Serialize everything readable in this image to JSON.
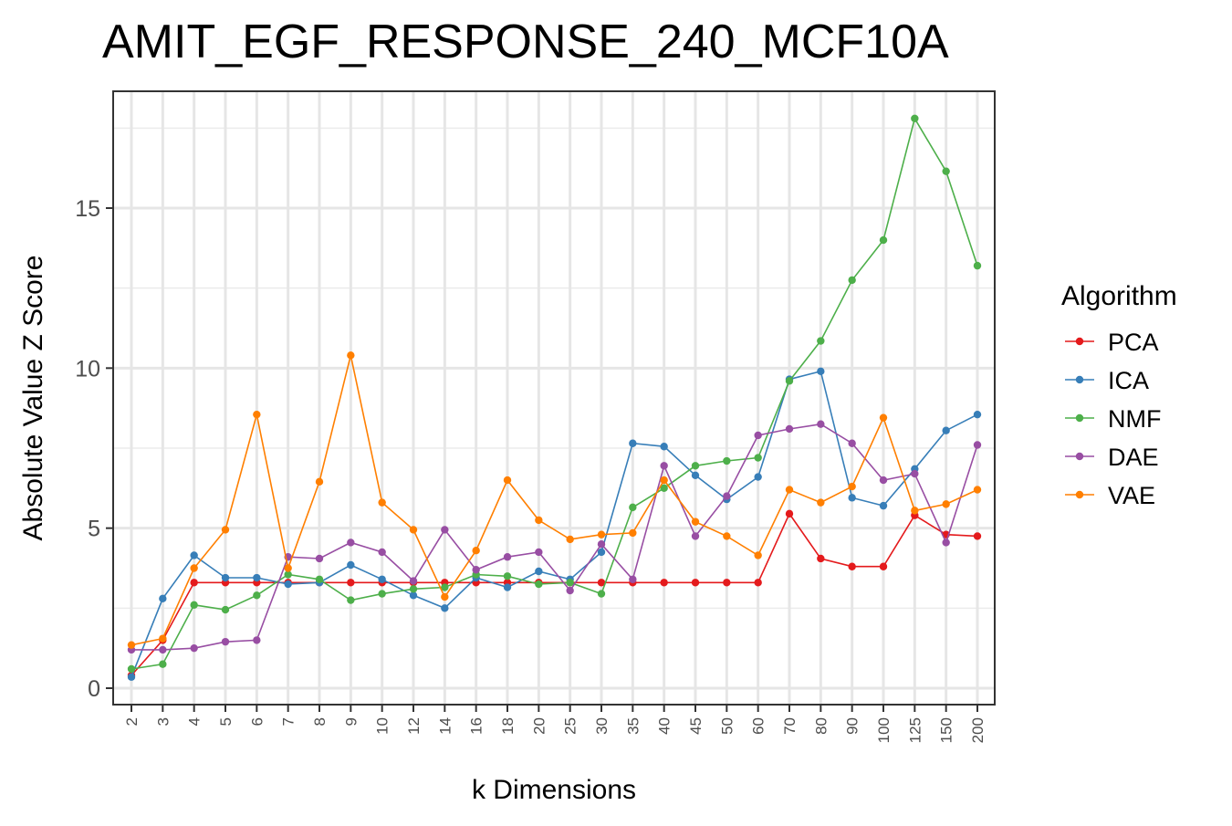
{
  "chart_data": {
    "type": "line",
    "title": "AMIT_EGF_RESPONSE_240_MCF10A",
    "xlabel": "k Dimensions",
    "ylabel": "Absolute Value Z Score",
    "categories": [
      "2",
      "3",
      "4",
      "5",
      "6",
      "7",
      "8",
      "9",
      "10",
      "12",
      "14",
      "16",
      "18",
      "20",
      "25",
      "30",
      "35",
      "40",
      "45",
      "50",
      "60",
      "70",
      "80",
      "90",
      "100",
      "125",
      "150",
      "200"
    ],
    "ylim": [
      -0.5,
      18.5
    ],
    "yticks": [
      0,
      5,
      10,
      15
    ],
    "grid": true,
    "legend": {
      "title": "Algorithm",
      "position": "right"
    },
    "series": [
      {
        "name": "PCA",
        "color": "#E41A1C",
        "values": [
          0.4,
          1.5,
          3.3,
          3.3,
          3.3,
          3.3,
          3.3,
          3.3,
          3.3,
          3.3,
          3.3,
          3.3,
          3.3,
          3.3,
          3.3,
          3.3,
          3.3,
          3.3,
          3.3,
          3.3,
          3.3,
          5.45,
          4.05,
          3.8,
          3.8,
          5.4,
          4.8,
          4.75
        ]
      },
      {
        "name": "ICA",
        "color": "#377EB8",
        "values": [
          0.35,
          2.8,
          4.15,
          3.45,
          3.45,
          3.25,
          3.3,
          3.85,
          3.4,
          2.9,
          2.5,
          3.45,
          3.15,
          3.65,
          3.4,
          4.25,
          7.65,
          7.55,
          6.65,
          5.9,
          6.6,
          9.65,
          9.9,
          5.95,
          5.7,
          6.85,
          8.05,
          8.55
        ]
      },
      {
        "name": "NMF",
        "color": "#4DAF4A",
        "values": [
          0.6,
          0.75,
          2.6,
          2.45,
          2.9,
          3.55,
          3.4,
          2.75,
          2.95,
          3.1,
          3.15,
          3.55,
          3.5,
          3.25,
          3.3,
          2.95,
          5.65,
          6.25,
          6.95,
          7.1,
          7.2,
          9.6,
          10.85,
          12.75,
          14.0,
          17.8,
          16.15,
          13.2
        ]
      },
      {
        "name": "DAE",
        "color": "#984EA3",
        "values": [
          1.2,
          1.2,
          1.25,
          1.45,
          1.5,
          4.1,
          4.05,
          4.55,
          4.25,
          3.35,
          4.95,
          3.7,
          4.1,
          4.25,
          3.05,
          4.5,
          3.4,
          6.95,
          4.75,
          6.0,
          7.9,
          8.1,
          8.25,
          7.65,
          6.5,
          6.7,
          4.55,
          7.6
        ]
      },
      {
        "name": "VAE",
        "color": "#FF7F00",
        "values": [
          1.35,
          1.55,
          3.75,
          4.95,
          8.55,
          3.75,
          6.45,
          10.4,
          5.8,
          4.95,
          2.85,
          4.3,
          6.5,
          5.25,
          4.65,
          4.8,
          4.85,
          6.5,
          5.2,
          4.75,
          4.15,
          6.2,
          5.8,
          6.3,
          8.45,
          5.55,
          5.75,
          6.2
        ]
      }
    ]
  }
}
